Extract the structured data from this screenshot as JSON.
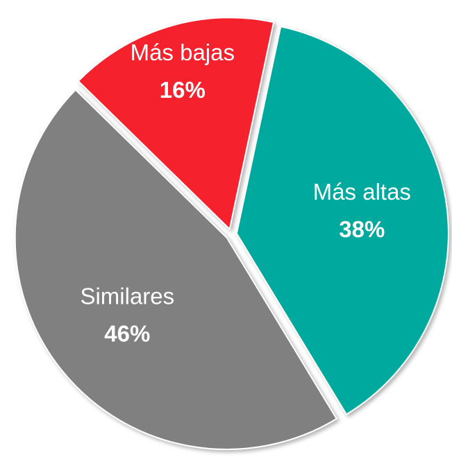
{
  "chart_data": {
    "type": "pie",
    "categories": [
      "Más altas",
      "Similares",
      "Más bajas"
    ],
    "values": [
      38,
      46,
      16
    ],
    "value_labels": [
      "38%",
      "46%",
      "16%"
    ],
    "colors": [
      "#00a99d",
      "#808080",
      "#f5222d"
    ]
  }
}
